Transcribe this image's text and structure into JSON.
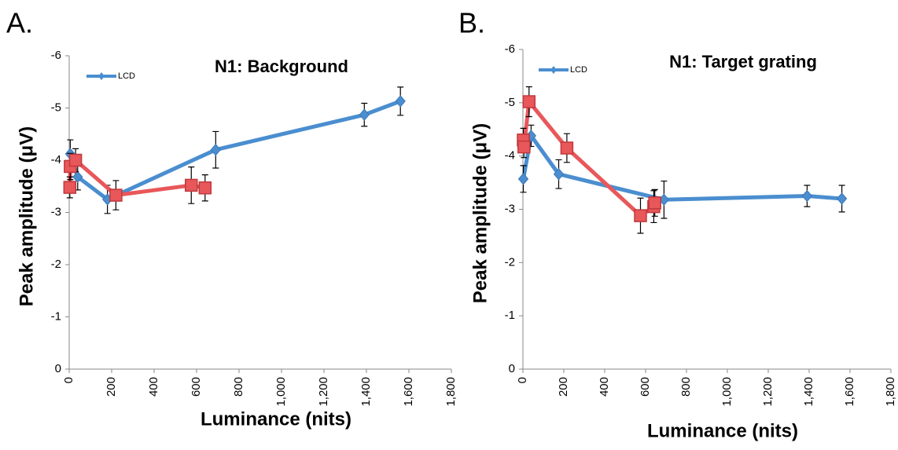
{
  "chart_data": [
    {
      "type": "line",
      "label": "A.",
      "title": "N1: Background",
      "xlabel": "Luminance (nits)",
      "ylabel": "Peak amplitude (μV)",
      "xlim": [
        0,
        1800
      ],
      "xticks": [
        0,
        200,
        400,
        600,
        800,
        {
          "value": 1000,
          "label": "1,000"
        },
        {
          "value": 1200,
          "label": "1,200"
        },
        {
          "value": 1400,
          "label": "1,400"
        },
        {
          "value": 1600,
          "label": "1,600"
        },
        {
          "value": 1800,
          "label": "1,800"
        }
      ],
      "ylim": [
        0,
        -6
      ],
      "yticks": [
        0,
        -1,
        -2,
        -3,
        -4,
        -5,
        -6
      ],
      "series": [
        {
          "name": "LCD",
          "color": "#4a8ed0",
          "marker": "diamond",
          "x": [
            5,
            40,
            180,
            690,
            1390,
            1560
          ],
          "values": [
            -4.12,
            -3.68,
            -3.25,
            -4.2,
            -4.87,
            -5.13
          ],
          "errors": [
            0.27,
            0.25,
            0.27,
            0.35,
            0.22,
            0.27
          ]
        },
        {
          "color": "#e8575a",
          "marker": "square",
          "x": [
            3,
            5,
            30,
            220,
            575,
            640
          ],
          "values": [
            -3.48,
            -3.88,
            -4.0,
            -3.33,
            -3.52,
            -3.47
          ],
          "errors": [
            0.2,
            0.25,
            0.22,
            0.28,
            0.35,
            0.25
          ]
        }
      ]
    },
    {
      "type": "line",
      "label": "B.",
      "title": "N1: Target grating",
      "xlabel": "Luminance (nits)",
      "ylabel": "Peak amplitude (μV)",
      "xlim": [
        0,
        1800
      ],
      "xticks": [
        0,
        200,
        400,
        600,
        800,
        {
          "value": 1000,
          "label": "1,000"
        },
        {
          "value": 1200,
          "label": "1,200"
        },
        {
          "value": 1400,
          "label": "1,400"
        },
        {
          "value": 1600,
          "label": "1,600"
        },
        {
          "value": 1800,
          "label": "1,800"
        }
      ],
      "ylim": [
        0,
        -6
      ],
      "yticks": [
        0,
        -1,
        -2,
        -3,
        -4,
        -5,
        -6
      ],
      "series": [
        {
          "name": "LCD",
          "color": "#4a8ed0",
          "marker": "diamond",
          "x": [
            2,
            40,
            175,
            690,
            1390,
            1560
          ],
          "values": [
            -3.57,
            -4.38,
            -3.66,
            -3.18,
            -3.25,
            -3.2
          ],
          "errors": [
            0.25,
            0.2,
            0.27,
            0.35,
            0.2,
            0.25
          ]
        },
        {
          "color": "#e8575a",
          "marker": "square",
          "x": [
            2,
            5,
            30,
            215,
            575,
            640,
            645
          ],
          "values": [
            -4.3,
            -4.17,
            -5.02,
            -4.15,
            -2.88,
            -3.05,
            -3.12
          ],
          "errors": [
            0.22,
            0.2,
            0.28,
            0.27,
            0.33,
            0.3,
            0.25
          ]
        }
      ]
    }
  ]
}
